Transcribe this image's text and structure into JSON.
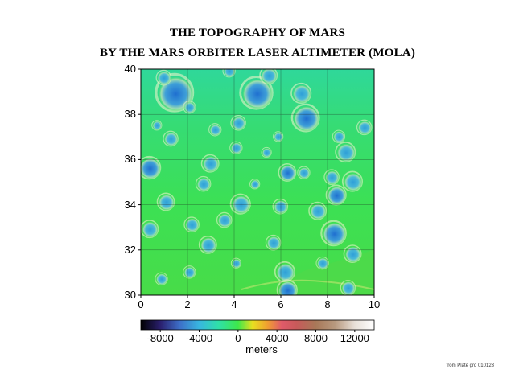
{
  "title": "THE TOPOGRAPHY OF MARS",
  "subtitle": "BY THE MARS ORBITER LASER ALTIMETER (MOLA)",
  "map": {
    "lat_range": [
      30,
      40
    ],
    "lon_range": [
      0,
      10
    ],
    "x_ticks": [
      "0",
      "2",
      "4",
      "6",
      "8",
      "10"
    ],
    "y_ticks": [
      "30",
      "32",
      "34",
      "36",
      "38",
      "40"
    ],
    "grid": true,
    "base_color": "#33dd66"
  },
  "colorbar": {
    "label": "meters",
    "ticks": [
      "-8000",
      "-4000",
      "0",
      "4000",
      "8000",
      "12000"
    ],
    "range": [
      -10000,
      14000
    ],
    "stops": [
      {
        "value": -10000,
        "color": "#000000"
      },
      {
        "value": -8000,
        "color": "#2a1f6e"
      },
      {
        "value": -6000,
        "color": "#3d6fc8"
      },
      {
        "value": -4000,
        "color": "#38b6e0"
      },
      {
        "value": -2000,
        "color": "#2fe0a8"
      },
      {
        "value": 0,
        "color": "#3ee84a"
      },
      {
        "value": 1500,
        "color": "#e8e020"
      },
      {
        "value": 3000,
        "color": "#f0a030"
      },
      {
        "value": 4500,
        "color": "#e05a6a"
      },
      {
        "value": 6000,
        "color": "#c85a5a"
      },
      {
        "value": 8000,
        "color": "#a87858"
      },
      {
        "value": 10000,
        "color": "#b89a80"
      },
      {
        "value": 12000,
        "color": "#e8e0d8"
      },
      {
        "value": 14000,
        "color": "#ffffff"
      }
    ]
  },
  "credit": "from Plate grd 010123"
}
